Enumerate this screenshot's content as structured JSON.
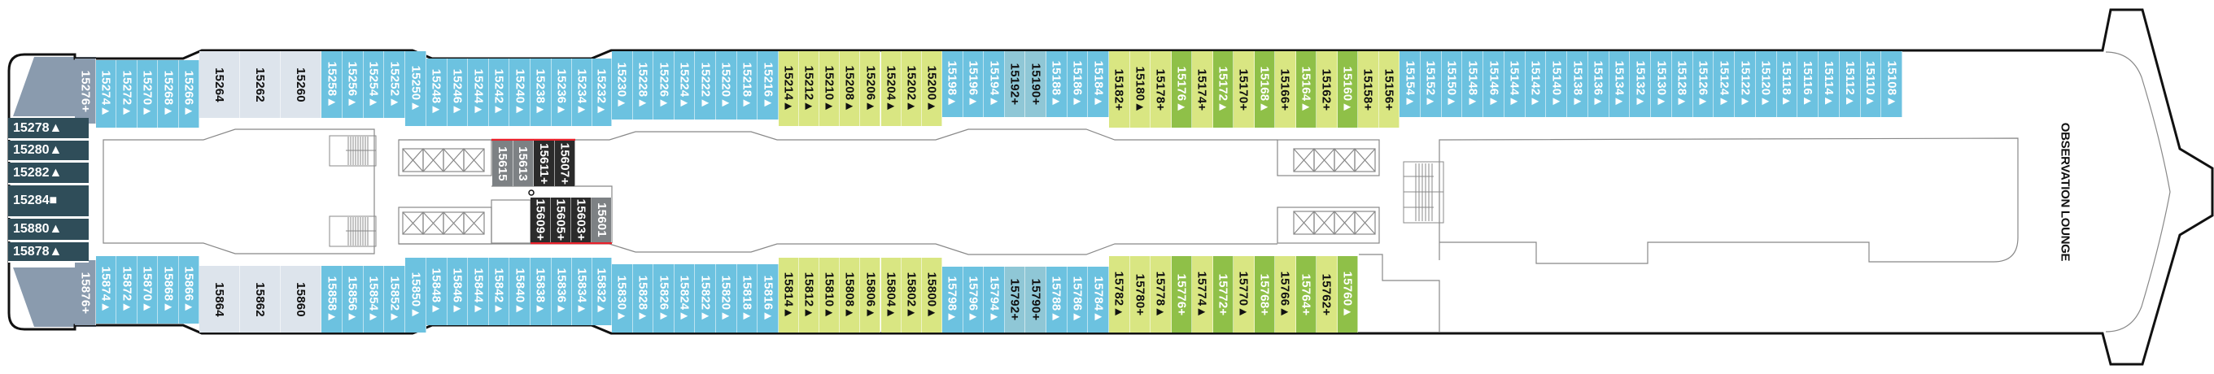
{
  "colors": {
    "blue": "#6cc2e0",
    "teal": "#8fc7d6",
    "lightgreen": "#d9e682",
    "darkgreen": "#8fc048",
    "lightgray": "#dde4ec",
    "slate": "#2f4d59",
    "bowgray": "#8a9bae",
    "gray": "#7d8184",
    "black": "#2b2b2b",
    "red": "#e8202a"
  },
  "lounge_label": "OBSERVATION LOUNGE",
  "bow_top": {
    "label": "15276+",
    "type": "bowgray"
  },
  "bow_bottom": {
    "label": "15876+",
    "type": "bowgray"
  },
  "bow_cabins": [
    {
      "label": "15278▲",
      "type": "slate"
    },
    {
      "label": "15280▲",
      "type": "slate"
    },
    {
      "label": "15282▲",
      "type": "slate"
    },
    {
      "label": "15284■",
      "type": "slate"
    },
    {
      "label": "15880▲",
      "type": "slate"
    },
    {
      "label": "15878▲",
      "type": "slate"
    }
  ],
  "top_row": [
    [
      {
        "label": "15274▲",
        "type": "blue"
      },
      {
        "label": "15272▲",
        "type": "blue"
      },
      {
        "label": "15270▲",
        "type": "blue"
      },
      {
        "label": "15268▲",
        "type": "blue"
      },
      {
        "label": "15266▲",
        "type": "blue"
      }
    ],
    [
      {
        "label": "15264",
        "type": "lightgray"
      },
      {
        "label": "15262",
        "type": "lightgray"
      },
      {
        "label": "15260",
        "type": "lightgray"
      }
    ],
    [
      {
        "label": "15258▲",
        "type": "blue"
      },
      {
        "label": "15256▲",
        "type": "blue"
      },
      {
        "label": "15254▲",
        "type": "blue"
      },
      {
        "label": "15252▲",
        "type": "blue"
      }
    ],
    [
      {
        "label": "15250▲",
        "type": "blue"
      }
    ],
    [
      {
        "label": "15248▲",
        "type": "blue"
      },
      {
        "label": "15246▲",
        "type": "blue"
      },
      {
        "label": "15244▲",
        "type": "blue"
      },
      {
        "label": "15242▲",
        "type": "blue"
      },
      {
        "label": "15240▲",
        "type": "blue"
      },
      {
        "label": "15238▲",
        "type": "blue"
      },
      {
        "label": "15236▲",
        "type": "blue"
      }
    ],
    [
      {
        "label": "15234▲",
        "type": "blue"
      },
      {
        "label": "15232▲",
        "type": "blue"
      }
    ],
    [
      {
        "label": "15230▲",
        "type": "blue"
      },
      {
        "label": "15228▲",
        "type": "blue"
      },
      {
        "label": "15226▲",
        "type": "blue"
      },
      {
        "label": "15224▲",
        "type": "blue"
      },
      {
        "label": "15222▲",
        "type": "blue"
      },
      {
        "label": "15220▲",
        "type": "blue"
      },
      {
        "label": "15218▲",
        "type": "blue"
      },
      {
        "label": "15216▲",
        "type": "blue"
      }
    ],
    [
      {
        "label": "15214▲",
        "type": "lightgreen"
      },
      {
        "label": "15212▲",
        "type": "lightgreen"
      },
      {
        "label": "15210▲",
        "type": "lightgreen"
      },
      {
        "label": "15208▲",
        "type": "lightgreen"
      },
      {
        "label": "15206▲",
        "type": "lightgreen"
      },
      {
        "label": "15204▲",
        "type": "lightgreen"
      },
      {
        "label": "15202▲",
        "type": "lightgreen"
      },
      {
        "label": "15200▲",
        "type": "lightgreen"
      }
    ],
    [
      {
        "label": "15198▲",
        "type": "blue"
      },
      {
        "label": "15196▲",
        "type": "blue"
      },
      {
        "label": "15194▲",
        "type": "blue"
      },
      {
        "label": "15192+",
        "type": "teal"
      },
      {
        "label": "15190+",
        "type": "teal"
      },
      {
        "label": "15188▲",
        "type": "blue"
      },
      {
        "label": "15186▲",
        "type": "blue"
      },
      {
        "label": "15184▲",
        "type": "blue"
      }
    ],
    [
      {
        "label": "15182+",
        "type": "lightgreen"
      },
      {
        "label": "15180▲",
        "type": "lightgreen"
      },
      {
        "label": "15178+",
        "type": "lightgreen"
      },
      {
        "label": "15176▲",
        "type": "darkgreen"
      },
      {
        "label": "15174+",
        "type": "lightgreen"
      },
      {
        "label": "15172▲",
        "type": "darkgreen"
      },
      {
        "label": "15170+",
        "type": "lightgreen"
      },
      {
        "label": "15168▲",
        "type": "darkgreen"
      },
      {
        "label": "15166+",
        "type": "lightgreen"
      },
      {
        "label": "15164▲",
        "type": "darkgreen"
      },
      {
        "label": "15162+",
        "type": "lightgreen"
      },
      {
        "label": "15160▲",
        "type": "darkgreen"
      },
      {
        "label": "15158+",
        "type": "lightgreen"
      },
      {
        "label": "15156+",
        "type": "lightgreen"
      }
    ],
    [
      {
        "label": "15154▲",
        "type": "blue"
      },
      {
        "label": "15152▲",
        "type": "blue"
      },
      {
        "label": "15150▲",
        "type": "blue"
      },
      {
        "label": "15148▲",
        "type": "blue"
      },
      {
        "label": "15146▲",
        "type": "blue"
      },
      {
        "label": "15144▲",
        "type": "blue"
      },
      {
        "label": "15142▲",
        "type": "blue"
      },
      {
        "label": "15140▲",
        "type": "blue"
      },
      {
        "label": "15138▲",
        "type": "blue"
      },
      {
        "label": "15136▲",
        "type": "blue"
      },
      {
        "label": "15134▲",
        "type": "blue"
      },
      {
        "label": "15132▲",
        "type": "blue"
      },
      {
        "label": "15130▲",
        "type": "blue"
      },
      {
        "label": "15128▲",
        "type": "blue"
      },
      {
        "label": "15126▲",
        "type": "blue"
      },
      {
        "label": "15124▲",
        "type": "blue"
      },
      {
        "label": "15122▲",
        "type": "blue"
      },
      {
        "label": "15120▲",
        "type": "blue"
      },
      {
        "label": "15118▲",
        "type": "blue"
      },
      {
        "label": "15116▲",
        "type": "blue"
      },
      {
        "label": "15114▲",
        "type": "blue"
      },
      {
        "label": "15112▲",
        "type": "blue"
      },
      {
        "label": "15110▲",
        "type": "blue"
      },
      {
        "label": "15108▲",
        "type": "blue"
      }
    ]
  ],
  "bottom_row": [
    [
      {
        "label": "15874▲",
        "type": "blue"
      },
      {
        "label": "15872▲",
        "type": "blue"
      },
      {
        "label": "15870▲",
        "type": "blue"
      },
      {
        "label": "15868▲",
        "type": "blue"
      },
      {
        "label": "15866▲",
        "type": "blue"
      }
    ],
    [
      {
        "label": "15864",
        "type": "lightgray"
      },
      {
        "label": "15862",
        "type": "lightgray"
      },
      {
        "label": "15860",
        "type": "lightgray"
      }
    ],
    [
      {
        "label": "15858▲",
        "type": "blue"
      },
      {
        "label": "15856▲",
        "type": "blue"
      },
      {
        "label": "15854▲",
        "type": "blue"
      },
      {
        "label": "15852▲",
        "type": "blue"
      }
    ],
    [
      {
        "label": "15850▲",
        "type": "blue"
      }
    ],
    [
      {
        "label": "15848▲",
        "type": "blue"
      },
      {
        "label": "15846▲",
        "type": "blue"
      },
      {
        "label": "15844▲",
        "type": "blue"
      },
      {
        "label": "15842▲",
        "type": "blue"
      },
      {
        "label": "15840▲",
        "type": "blue"
      },
      {
        "label": "15838▲",
        "type": "blue"
      },
      {
        "label": "15836▲",
        "type": "blue"
      }
    ],
    [
      {
        "label": "15834▲",
        "type": "blue"
      },
      {
        "label": "15832▲",
        "type": "blue"
      }
    ],
    [
      {
        "label": "15830▲",
        "type": "blue"
      },
      {
        "label": "15828▲",
        "type": "blue"
      },
      {
        "label": "15826▲",
        "type": "blue"
      },
      {
        "label": "15824▲",
        "type": "blue"
      },
      {
        "label": "15822▲",
        "type": "blue"
      },
      {
        "label": "15820▲",
        "type": "blue"
      },
      {
        "label": "15818▲",
        "type": "blue"
      },
      {
        "label": "15816▲",
        "type": "blue"
      }
    ],
    [
      {
        "label": "15814▲",
        "type": "lightgreen"
      },
      {
        "label": "15812▲",
        "type": "lightgreen"
      },
      {
        "label": "15810▲",
        "type": "lightgreen"
      },
      {
        "label": "15808▲",
        "type": "lightgreen"
      },
      {
        "label": "15806▲",
        "type": "lightgreen"
      },
      {
        "label": "15804▲",
        "type": "lightgreen"
      },
      {
        "label": "15802▲",
        "type": "lightgreen"
      },
      {
        "label": "15800▲",
        "type": "lightgreen"
      }
    ],
    [
      {
        "label": "15798▲",
        "type": "blue"
      },
      {
        "label": "15796▲",
        "type": "blue"
      },
      {
        "label": "15794▲",
        "type": "blue"
      },
      {
        "label": "15792+",
        "type": "teal"
      },
      {
        "label": "15790+",
        "type": "teal"
      },
      {
        "label": "15788▲",
        "type": "blue"
      },
      {
        "label": "15786▲",
        "type": "blue"
      },
      {
        "label": "15784▲",
        "type": "blue"
      }
    ],
    [
      {
        "label": "15782▲",
        "type": "lightgreen"
      },
      {
        "label": "15780+",
        "type": "lightgreen"
      },
      {
        "label": "15778▲",
        "type": "lightgreen"
      },
      {
        "label": "15776+",
        "type": "darkgreen"
      },
      {
        "label": "15774▲",
        "type": "lightgreen"
      },
      {
        "label": "15772+",
        "type": "darkgreen"
      },
      {
        "label": "15770▲",
        "type": "lightgreen"
      },
      {
        "label": "15768+",
        "type": "darkgreen"
      },
      {
        "label": "15766▲",
        "type": "lightgreen"
      },
      {
        "label": "15764+",
        "type": "darkgreen"
      },
      {
        "label": "15762+",
        "type": "lightgreen"
      },
      {
        "label": "15760▲",
        "type": "darkgreen"
      }
    ]
  ],
  "inner_top": [
    {
      "label": "15615",
      "type": "gray"
    },
    {
      "label": "15613",
      "type": "gray"
    },
    {
      "label": "15611+",
      "type": "black"
    },
    {
      "label": "15607+",
      "type": "black"
    }
  ],
  "inner_bottom": [
    {
      "label": "15609+",
      "type": "black"
    },
    {
      "label": "15605+",
      "type": "black"
    },
    {
      "label": "15603+",
      "type": "black"
    },
    {
      "label": "15601",
      "type": "gray"
    }
  ]
}
